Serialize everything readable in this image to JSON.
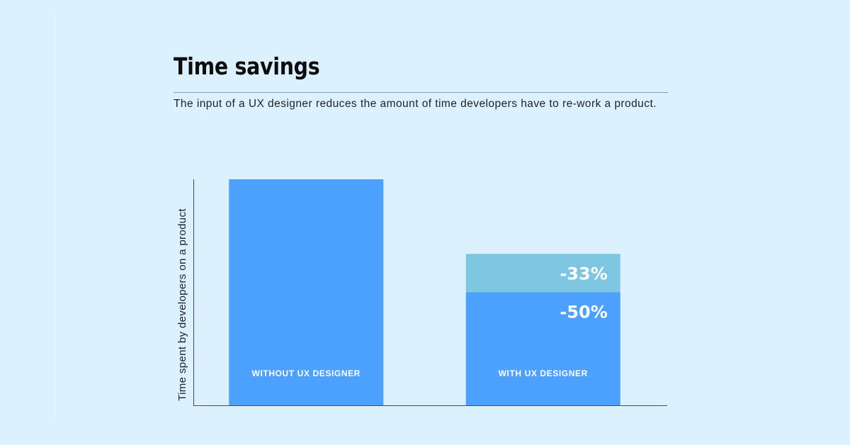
{
  "title": "Time savings",
  "subtitle": "The input of a UX designer reduces the amount of time developers have to re-work a product.",
  "chart_data": {
    "type": "bar",
    "stacked": true,
    "ylabel": "Time spent by developers on a product",
    "xlabel": "",
    "ylim": [
      0,
      100
    ],
    "categories": [
      "WITHOUT UX DESIGNER",
      "WITH UX DESIGNER"
    ],
    "series": [
      {
        "values": [
          100,
          50
        ],
        "color": "#4ca1fe",
        "labels": [
          "",
          "-50%"
        ]
      },
      {
        "values": [
          0,
          17
        ],
        "color": "#7fc6e2",
        "labels": [
          "",
          "-33%"
        ]
      }
    ],
    "grid": false,
    "legend": "none"
  },
  "colors": {
    "background": "#dbf1fd",
    "axis": "#4a4a4a"
  }
}
